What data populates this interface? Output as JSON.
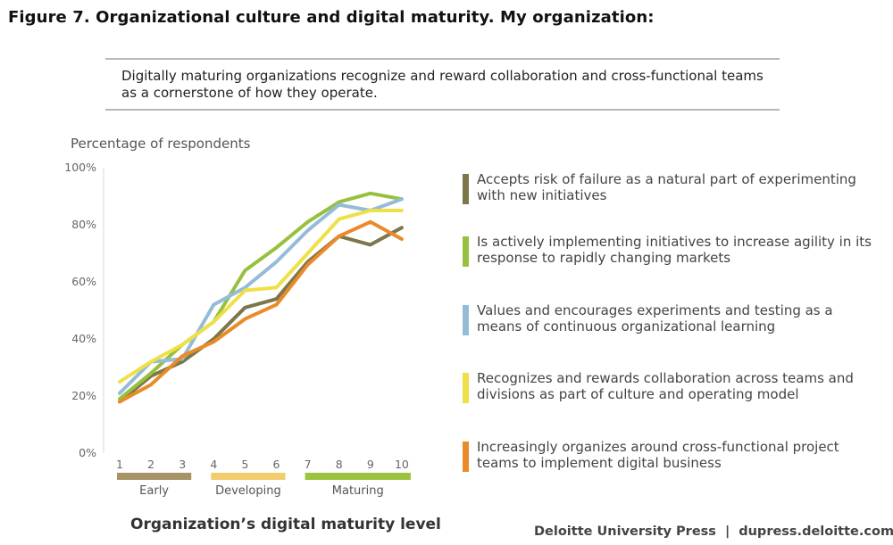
{
  "figure": {
    "title": "Figure 7. Organizational culture and digital maturity. My organization:",
    "callout": "Digitally maturing organizations recognize and reward collaboration and cross-functional teams as a cornerstone of how they operate."
  },
  "chart_data": {
    "type": "line",
    "ylabel": "Percentage of respondents",
    "xlabel": "Organization’s digital maturity level",
    "ylim": [
      0,
      100
    ],
    "yticks": [
      "0%",
      "20%",
      "40%",
      "60%",
      "80%",
      "100%"
    ],
    "x": [
      "1",
      "2",
      "3",
      "4",
      "5",
      "6",
      "7",
      "8",
      "9",
      "10"
    ],
    "groups": [
      {
        "label": "Early",
        "from": 1,
        "to": 3,
        "color": "#a89366"
      },
      {
        "label": "Developing",
        "from": 4,
        "to": 6,
        "color": "#f2cd6b"
      },
      {
        "label": "Maturing",
        "from": 7,
        "to": 10,
        "color": "#9ac43e"
      }
    ],
    "series": [
      {
        "name": "Accepts risk of failure as a natural part of experimenting with new initiatives",
        "color": "#7d7649",
        "values": [
          18,
          27,
          32,
          40,
          51,
          54,
          67,
          76,
          73,
          79
        ]
      },
      {
        "name": "Is actively implementing initiatives to increase agility in its response to rapidly changing markets",
        "color": "#98c03f",
        "values": [
          19,
          28,
          38,
          46,
          64,
          72,
          81,
          88,
          91,
          89
        ]
      },
      {
        "name": "Values and encourages experiments and testing as a means of continuous organizational learning",
        "color": "#94bcd9",
        "values": [
          21,
          32,
          33,
          52,
          58,
          67,
          78,
          87,
          85,
          89
        ]
      },
      {
        "name": "Recognizes and rewards collaboration across teams and divisions as part of culture and operating model",
        "color": "#f0e047",
        "values": [
          25,
          32,
          38,
          46,
          57,
          58,
          70,
          82,
          85,
          85
        ]
      },
      {
        "name": "Increasingly organizes around cross-functional project teams to implement digital business",
        "color": "#ea8a28",
        "values": [
          18,
          24,
          34,
          39,
          47,
          52,
          66,
          76,
          81,
          75
        ]
      }
    ]
  },
  "source": {
    "publisher": "Deloitte University Press",
    "separator": "|",
    "url": "dupress.deloitte.com"
  }
}
